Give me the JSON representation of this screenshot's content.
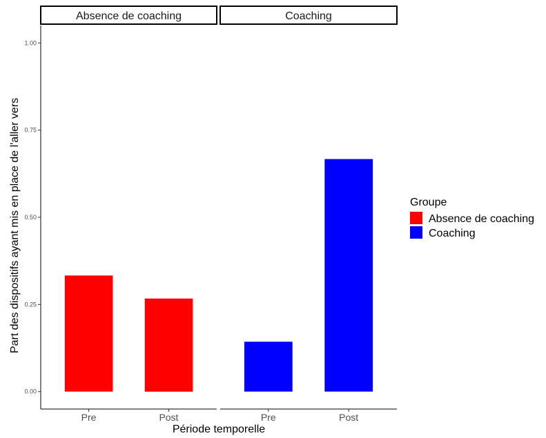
{
  "chart_data": {
    "type": "bar",
    "facets": [
      "Absence de coaching",
      "Coaching"
    ],
    "categories": [
      "Pre",
      "Post"
    ],
    "series": [
      {
        "name": "Absence de coaching",
        "facet": "Absence de coaching",
        "values": [
          0.333,
          0.267
        ],
        "color": "#ff0000"
      },
      {
        "name": "Coaching",
        "facet": "Coaching",
        "values": [
          0.143,
          0.667
        ],
        "color": "#0000ff"
      }
    ],
    "xlabel": "Période temporelle",
    "ylabel": "Part des dispositifs ayant mis en place de l'aller vers",
    "ylim": [
      -0.05,
      1.05
    ],
    "yticks": [
      "0.00",
      "0.25",
      "0.50",
      "0.75",
      "1.00"
    ],
    "ytick_values": [
      0,
      0.25,
      0.5,
      0.75,
      1.0
    ],
    "legend": {
      "title": "Groupe",
      "position": "right",
      "entries": [
        "Absence de coaching",
        "Coaching"
      ]
    },
    "grid": false
  }
}
